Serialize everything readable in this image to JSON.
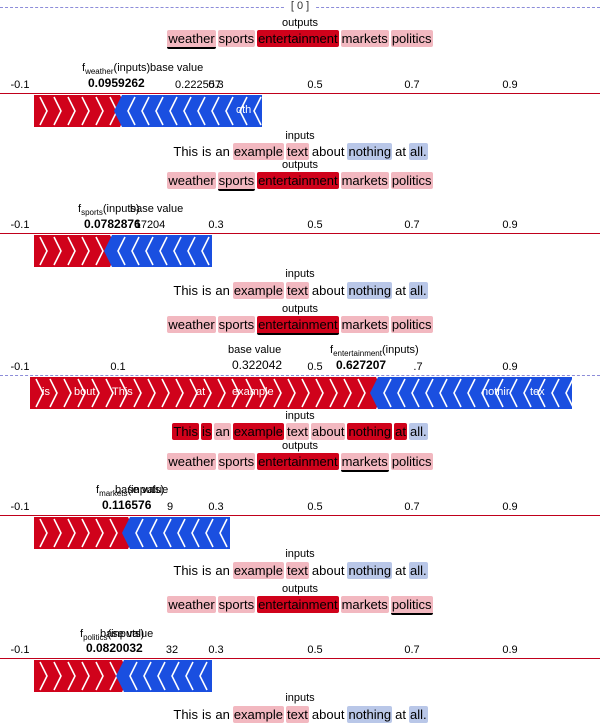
{
  "header": {
    "index_label": "[ 0 ]"
  },
  "outputs_label": "outputs",
  "inputs_label": "inputs",
  "output_tokens": [
    "weather",
    "sports",
    "entertainment",
    "markets",
    "politics"
  ],
  "input_tokens": [
    "This",
    "is",
    "an",
    "example",
    "text",
    "about",
    "nothing",
    "at",
    "all."
  ],
  "axis_ticks": [
    "-0.1",
    "0.1",
    "0.3",
    "0.5",
    "0.7",
    "0.9"
  ],
  "colors": {
    "positive": "#d0021b",
    "negative": "#1a4fe0",
    "pos_light": "#f2b8c0",
    "neg_light": "#b9c7e8",
    "axis_line": "#c0001b"
  },
  "panels": [
    {
      "active_output": "weather",
      "f_label": "f",
      "f_sub": "weather",
      "f_suffix": "(inputs)",
      "f_value": "0.0959262",
      "base_label": "base value",
      "base_value": "0.222557",
      "visible_ticks": [
        "-0.1",
        "0.3",
        "0.5",
        "0.7",
        "0.9"
      ],
      "bar_labels": [
        "oth"
      ],
      "output_tints": [
        "pos_light",
        "pos_light",
        "positive",
        "pos_light",
        "pos_light"
      ],
      "input_tints": [
        "none",
        "none",
        "none",
        "pos_light",
        "pos_light",
        "none",
        "neg_light",
        "none",
        "neg_light"
      ]
    },
    {
      "active_output": "sports",
      "f_label": "f",
      "f_sub": "sports",
      "f_suffix": "(inputs)",
      "f_value": "0.0782876",
      "base_label": "base value",
      "base_value": "17204",
      "visible_ticks": [
        "-0.1",
        "0.3",
        "0.5",
        "0.7",
        "0.9"
      ],
      "bar_labels": [],
      "output_tints": [
        "pos_light",
        "pos_light",
        "positive",
        "pos_light",
        "pos_light"
      ],
      "input_tints": [
        "none",
        "none",
        "none",
        "pos_light",
        "pos_light",
        "none",
        "neg_light",
        "none",
        "neg_light"
      ]
    },
    {
      "active_output": "entertainment",
      "f_label": "f",
      "f_sub": "entertainment",
      "f_suffix": "(inputs)",
      "f_value": "0.627207",
      "base_label": "base value",
      "base_value": "0.322042",
      "visible_ticks": [
        "-0.1",
        "0.1",
        "0.5",
        "0.9"
      ],
      "tick_fragment": ".7",
      "bar_labels": [
        "is",
        "bout",
        "This",
        "at",
        "example",
        "nothir",
        "tex"
      ],
      "output_tints": [
        "pos_light",
        "pos_light",
        "positive",
        "pos_light",
        "pos_light"
      ],
      "input_tints": [
        "positive",
        "positive",
        "pos_light",
        "positive",
        "pos_light",
        "pos_light",
        "positive",
        "positive",
        "neg_light"
      ]
    },
    {
      "active_output": "markets",
      "f_label": "f",
      "f_sub": "markets",
      "f_suffix": "(inputs)",
      "f_value": "0.116576",
      "base_label": "base value",
      "base_value": "9",
      "visible_ticks": [
        "-0.1",
        "0.3",
        "0.5",
        "0.7",
        "0.9"
      ],
      "bar_labels": [],
      "output_tints": [
        "pos_light",
        "pos_light",
        "positive",
        "pos_light",
        "pos_light"
      ],
      "input_tints": [
        "none",
        "none",
        "none",
        "pos_light",
        "pos_light",
        "none",
        "neg_light",
        "none",
        "neg_light"
      ]
    },
    {
      "active_output": "politics",
      "f_label": "f",
      "f_sub": "politics",
      "f_suffix": "(inputs)",
      "f_value": "0.0820032",
      "base_label": "base value",
      "base_value": "32",
      "visible_ticks": [
        "-0.1",
        "0.3",
        "0.5",
        "0.7",
        "0.9"
      ],
      "bar_labels": [],
      "output_tints": [
        "pos_light",
        "pos_light",
        "positive",
        "pos_light",
        "pos_light"
      ],
      "input_tints": [
        "none",
        "none",
        "none",
        "pos_light",
        "pos_light",
        "none",
        "neg_light",
        "none",
        "neg_light"
      ]
    }
  ]
}
